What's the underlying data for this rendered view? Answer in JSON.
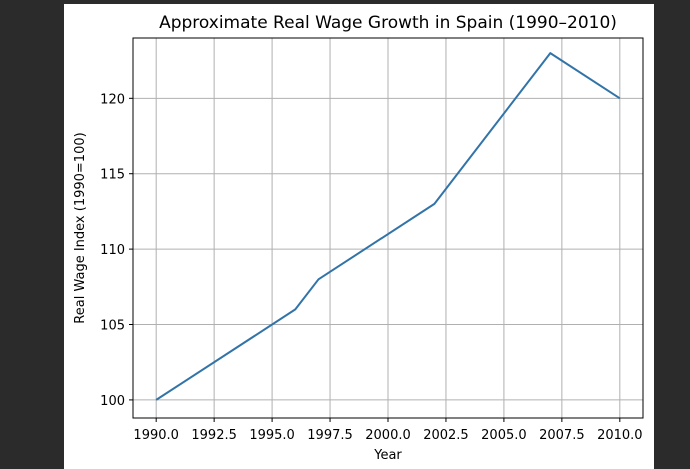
{
  "chart_data": {
    "type": "line",
    "title": "Approximate Real Wage Growth in Spain (1990–2010)",
    "xlabel": "Year",
    "ylabel": "Real Wage Index (1990=100)",
    "xlim": [
      1989.0,
      2011.0
    ],
    "ylim": [
      98.8,
      124.0
    ],
    "grid": true,
    "xticks": [
      {
        "value": 1990.0,
        "label": "1990.0"
      },
      {
        "value": 1992.5,
        "label": "1992.5"
      },
      {
        "value": 1995.0,
        "label": "1995.0"
      },
      {
        "value": 1997.5,
        "label": "1997.5"
      },
      {
        "value": 2000.0,
        "label": "2000.0"
      },
      {
        "value": 2002.5,
        "label": "2002.5"
      },
      {
        "value": 2005.0,
        "label": "2005.0"
      },
      {
        "value": 2007.5,
        "label": "2007.5"
      },
      {
        "value": 2010.0,
        "label": "2010.0"
      }
    ],
    "yticks": [
      {
        "value": 100,
        "label": "100"
      },
      {
        "value": 105,
        "label": "105"
      },
      {
        "value": 110,
        "label": "110"
      },
      {
        "value": 115,
        "label": "115"
      },
      {
        "value": 120,
        "label": "120"
      }
    ],
    "series": [
      {
        "name": "Real Wage Index",
        "color": "#3274a8",
        "x": [
          1990,
          1996,
          1997,
          2002,
          2007,
          2010
        ],
        "y": [
          100,
          106,
          108,
          113,
          123,
          120
        ]
      }
    ]
  }
}
